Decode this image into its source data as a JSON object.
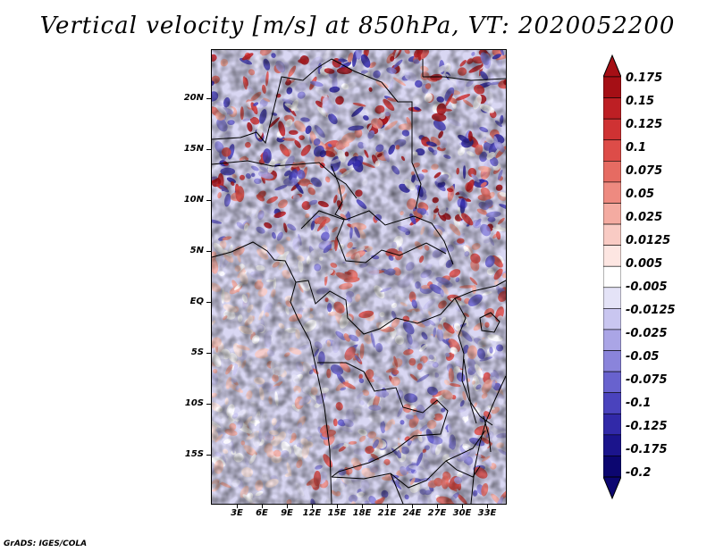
{
  "title": "Vertical velocity [m/s] at 850hPa, VT: 2020052200",
  "footer": "GrADS: IGES/COLA",
  "map": {
    "lat_labels": [
      "20N",
      "15N",
      "10N",
      "5N",
      "EQ",
      "5S",
      "10S",
      "15S"
    ],
    "lon_labels": [
      "3E",
      "6E",
      "9E",
      "12E",
      "15E",
      "18E",
      "21E",
      "24E",
      "27E",
      "30E",
      "33E"
    ],
    "field": "vertical velocity at 850 hPa",
    "level": "850hPa",
    "valid_time": "2020052200"
  },
  "colorbar": {
    "labels": [
      "0.175",
      "0.15",
      "0.125",
      "0.1",
      "0.075",
      "0.05",
      "0.025",
      "0.0125",
      "0.005",
      "-0.005",
      "-0.0125",
      "-0.025",
      "-0.05",
      "-0.075",
      "-0.1",
      "-0.125",
      "-0.175",
      "-0.2"
    ],
    "colors": [
      "#a50f15",
      "#bd1f24",
      "#cf3233",
      "#dd4c48",
      "#e66b62",
      "#ee8a80",
      "#f4aba1",
      "#f9cbc4",
      "#fde6e2",
      "#ffffff",
      "#e4e3f7",
      "#c9c6f0",
      "#aaa5e6",
      "#8a84db",
      "#6862ce",
      "#4a43bd",
      "#3129a8",
      "#1b148c",
      "#0c0670"
    ]
  }
}
